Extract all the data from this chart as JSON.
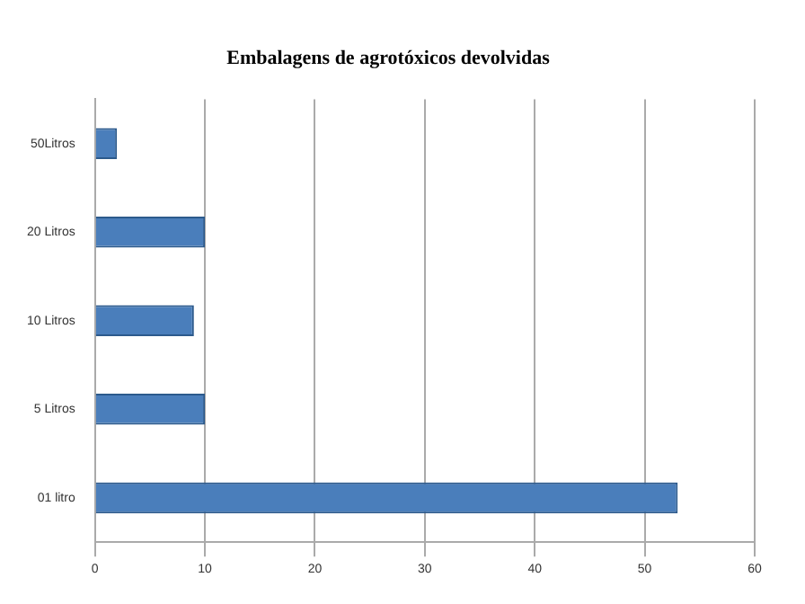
{
  "chart_data": {
    "type": "bar",
    "orientation": "horizontal",
    "title": "Embalagens de agrotóxicos devolvidas",
    "categories": [
      "50Litros",
      "20 Litros",
      "10 Litros",
      "5 Litros",
      "01 litro"
    ],
    "values": [
      2,
      10,
      9,
      10,
      53
    ],
    "color": "#4a7ebb",
    "xlim": [
      0,
      60
    ],
    "xticks": [
      0,
      10,
      20,
      30,
      40,
      50,
      60
    ],
    "grid": "x"
  }
}
